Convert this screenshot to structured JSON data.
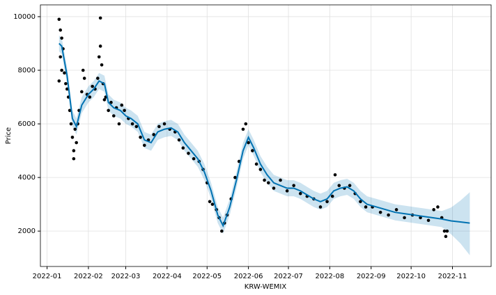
{
  "chart_data": {
    "type": "forecast",
    "x_label": "KRW-WEMIX",
    "y_label": "Price",
    "xlim": [
      "2021-12-27",
      "2022-11-30"
    ],
    "xticks": [
      {
        "value": "2022-01-01",
        "label": "2022-01"
      },
      {
        "value": "2022-02-01",
        "label": "2022-02"
      },
      {
        "value": "2022-03-01",
        "label": "2022-03"
      },
      {
        "value": "2022-04-01",
        "label": "2022-04"
      },
      {
        "value": "2022-05-01",
        "label": "2022-05"
      },
      {
        "value": "2022-06-01",
        "label": "2022-06"
      },
      {
        "value": "2022-07-01",
        "label": "2022-07"
      },
      {
        "value": "2022-08-01",
        "label": "2022-08"
      },
      {
        "value": "2022-09-01",
        "label": "2022-09"
      },
      {
        "value": "2022-10-01",
        "label": "2022-10"
      },
      {
        "value": "2022-11-01",
        "label": "2022-11"
      }
    ],
    "ylim": [
      680,
      10440
    ],
    "yticks": [
      2000,
      4000,
      6000,
      8000,
      10000
    ],
    "grid": true,
    "points": {
      "color": "#000000",
      "x": [
        "2022-01-10",
        "2022-01-10",
        "2022-01-11",
        "2022-01-11",
        "2022-01-12",
        "2022-01-12",
        "2022-01-13",
        "2022-01-14",
        "2022-01-15",
        "2022-01-16",
        "2022-01-17",
        "2022-01-18",
        "2022-01-19",
        "2022-01-20",
        "2022-01-21",
        "2022-01-21",
        "2022-01-22",
        "2022-01-23",
        "2022-01-24",
        "2022-01-25",
        "2022-01-27",
        "2022-01-28",
        "2022-01-29",
        "2022-01-31",
        "2022-02-02",
        "2022-02-04",
        "2022-02-06",
        "2022-02-08",
        "2022-02-09",
        "2022-02-10",
        "2022-02-10",
        "2022-02-11",
        "2022-02-12",
        "2022-02-13",
        "2022-02-14",
        "2022-02-16",
        "2022-02-18",
        "2022-02-20",
        "2022-02-22",
        "2022-02-24",
        "2022-02-26",
        "2022-02-28",
        "2022-03-03",
        "2022-03-06",
        "2022-03-09",
        "2022-03-12",
        "2022-03-15",
        "2022-03-18",
        "2022-03-22",
        "2022-03-26",
        "2022-03-30",
        "2022-04-03",
        "2022-04-07",
        "2022-04-10",
        "2022-04-13",
        "2022-04-17",
        "2022-04-21",
        "2022-04-25",
        "2022-04-28",
        "2022-05-01",
        "2022-05-03",
        "2022-05-05",
        "2022-05-08",
        "2022-05-10",
        "2022-05-12",
        "2022-05-14",
        "2022-05-16",
        "2022-05-19",
        "2022-05-22",
        "2022-05-25",
        "2022-05-28",
        "2022-05-30",
        "2022-06-01",
        "2022-06-04",
        "2022-06-07",
        "2022-06-10",
        "2022-06-13",
        "2022-06-16",
        "2022-06-20",
        "2022-06-25",
        "2022-06-30",
        "2022-07-05",
        "2022-07-10",
        "2022-07-15",
        "2022-07-20",
        "2022-07-25",
        "2022-07-30",
        "2022-08-03",
        "2022-08-05",
        "2022-08-08",
        "2022-08-12",
        "2022-08-16",
        "2022-08-20",
        "2022-08-24",
        "2022-08-28",
        "2022-09-02",
        "2022-09-08",
        "2022-09-14",
        "2022-09-20",
        "2022-09-26",
        "2022-10-02",
        "2022-10-08",
        "2022-10-14",
        "2022-10-18",
        "2022-10-21",
        "2022-10-24",
        "2022-10-26",
        "2022-10-27",
        "2022-10-28"
      ],
      "values": [
        7600,
        9900,
        8500,
        9500,
        8000,
        9200,
        8800,
        7900,
        7500,
        7300,
        7000,
        6500,
        6000,
        5500,
        5000,
        4700,
        5800,
        5300,
        6000,
        6500,
        7200,
        8000,
        7700,
        7100,
        7000,
        7400,
        7300,
        7700,
        8500,
        8900,
        9950,
        8200,
        7500,
        6900,
        7000,
        6500,
        6800,
        6300,
        6600,
        6000,
        6700,
        6500,
        6200,
        6000,
        5900,
        5500,
        5200,
        5400,
        5600,
        5900,
        6000,
        5800,
        5700,
        5400,
        5100,
        4900,
        4700,
        4600,
        4300,
        3800,
        3100,
        3000,
        2800,
        2500,
        2000,
        2300,
        2600,
        3200,
        4000,
        4600,
        5800,
        6000,
        5300,
        5000,
        4500,
        4300,
        3900,
        3800,
        3600,
        3900,
        3500,
        3700,
        3400,
        3300,
        3200,
        2900,
        3100,
        3300,
        4100,
        3700,
        3600,
        3700,
        3400,
        3100,
        2900,
        2900,
        2700,
        2600,
        2800,
        2500,
        2600,
        2500,
        2400,
        2800,
        2900,
        2500,
        2000,
        1800,
        2000
      ]
    },
    "forecast": {
      "color": "#0072b2",
      "band_color": "#0072b2",
      "x": [
        "2022-01-10",
        "2022-01-12",
        "2022-01-16",
        "2022-01-20",
        "2022-01-23",
        "2022-01-27",
        "2022-02-01",
        "2022-02-05",
        "2022-02-09",
        "2022-02-13",
        "2022-02-16",
        "2022-02-20",
        "2022-02-25",
        "2022-03-01",
        "2022-03-05",
        "2022-03-10",
        "2022-03-15",
        "2022-03-20",
        "2022-03-25",
        "2022-03-30",
        "2022-04-04",
        "2022-04-09",
        "2022-04-14",
        "2022-04-19",
        "2022-04-24",
        "2022-04-29",
        "2022-05-04",
        "2022-05-09",
        "2022-05-13",
        "2022-05-18",
        "2022-05-23",
        "2022-05-28",
        "2022-06-01",
        "2022-06-05",
        "2022-06-10",
        "2022-06-15",
        "2022-06-20",
        "2022-06-25",
        "2022-06-30",
        "2022-07-05",
        "2022-07-10",
        "2022-07-15",
        "2022-07-20",
        "2022-07-25",
        "2022-07-30",
        "2022-08-04",
        "2022-08-09",
        "2022-08-14",
        "2022-08-19",
        "2022-08-24",
        "2022-08-29",
        "2022-09-05",
        "2022-09-12",
        "2022-09-19",
        "2022-09-26",
        "2022-10-03",
        "2022-10-10",
        "2022-10-17",
        "2022-10-24",
        "2022-10-31",
        "2022-11-07",
        "2022-11-14"
      ],
      "values": [
        9000,
        8900,
        7800,
        6200,
        5900,
        6700,
        7100,
        7300,
        7600,
        7500,
        6800,
        6600,
        6500,
        6300,
        6200,
        6000,
        5400,
        5300,
        5700,
        5800,
        5850,
        5700,
        5300,
        5000,
        4700,
        4200,
        3500,
        2600,
        2200,
        2900,
        3900,
        5000,
        5500,
        5100,
        4500,
        4100,
        3800,
        3700,
        3600,
        3600,
        3500,
        3350,
        3200,
        3100,
        3200,
        3500,
        3600,
        3650,
        3500,
        3200,
        3000,
        2900,
        2800,
        2700,
        2650,
        2600,
        2550,
        2500,
        2450,
        2380,
        2340,
        2300
      ],
      "lower": [
        8700,
        8600,
        7500,
        5900,
        5600,
        6400,
        6800,
        7000,
        7300,
        7200,
        6500,
        6300,
        6200,
        6000,
        5900,
        5700,
        5100,
        5000,
        5400,
        5500,
        5550,
        5400,
        5000,
        4700,
        4400,
        3900,
        3200,
        2300,
        1900,
        2600,
        3600,
        4700,
        5200,
        4800,
        4200,
        3800,
        3500,
        3400,
        3300,
        3300,
        3200,
        3050,
        2900,
        2800,
        2900,
        3200,
        3300,
        3350,
        3200,
        2900,
        2700,
        2600,
        2500,
        2400,
        2350,
        2300,
        2250,
        2200,
        2150,
        1880,
        1540,
        1100
      ],
      "upper": [
        9300,
        9200,
        8100,
        6500,
        6200,
        7000,
        7400,
        7600,
        7900,
        7800,
        7100,
        6900,
        6800,
        6600,
        6500,
        6300,
        5700,
        5600,
        6000,
        6100,
        6150,
        6000,
        5600,
        5300,
        5000,
        4500,
        3800,
        2900,
        2500,
        3200,
        4200,
        5300,
        5800,
        5400,
        4800,
        4400,
        4100,
        4000,
        3900,
        3900,
        3800,
        3650,
        3500,
        3400,
        3500,
        3800,
        3900,
        3950,
        3800,
        3500,
        3300,
        3200,
        3100,
        3000,
        2950,
        2900,
        2850,
        2800,
        2750,
        2880,
        3140,
        3450
      ]
    }
  }
}
